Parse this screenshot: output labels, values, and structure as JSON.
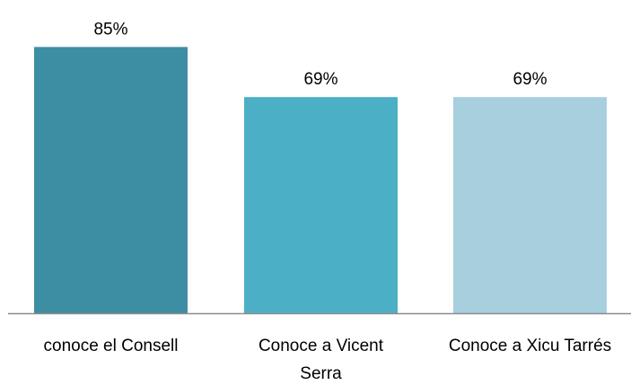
{
  "chart_data": {
    "type": "bar",
    "categories": [
      [
        "conoce el Consell"
      ],
      [
        "Conoce a Vicent",
        "Serra"
      ],
      [
        "Conoce a Xicu Tarrés"
      ]
    ],
    "values": [
      85,
      69,
      69
    ],
    "value_labels": [
      "85%",
      "69%",
      "69%"
    ],
    "unit": "%",
    "ylim": [
      0,
      100
    ],
    "grid": false,
    "legend": "none",
    "colors": [
      "#3d8ea3",
      "#4bafc6",
      "#a7cfdd"
    ],
    "axis_color": "#8c8c8c"
  }
}
